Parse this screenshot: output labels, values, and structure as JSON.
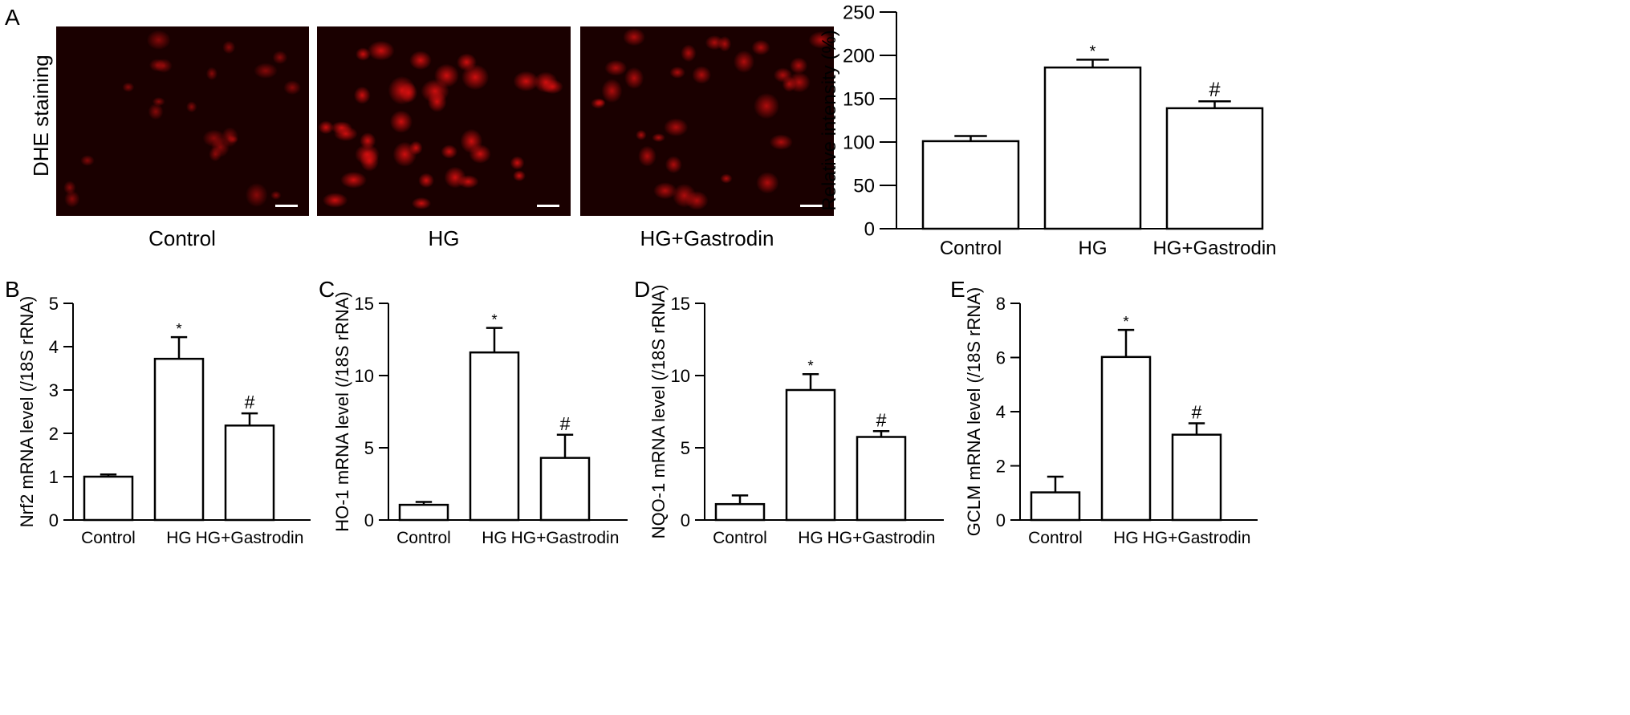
{
  "panel_a": {
    "letter": "A",
    "stain_label": "DHE staining",
    "images": [
      {
        "label": "Control",
        "intensity": "low"
      },
      {
        "label": "HG",
        "intensity": "high"
      },
      {
        "label": "HG+Gastrodin",
        "intensity": "medium"
      }
    ]
  },
  "colors": {
    "cell_signal": "#e01010",
    "background": "#1a0000",
    "bar_fill": "#ffffff",
    "bar_stroke": "#000000"
  },
  "chart_data": [
    {
      "panel": "A",
      "type": "bar",
      "categories": [
        "Control",
        "HG",
        "HG+Gastrodin"
      ],
      "values": [
        101,
        186,
        139
      ],
      "errors": [
        6,
        9,
        8
      ],
      "annotations": [
        "",
        "*",
        "#"
      ],
      "ylabel": "Relative intensity (%)",
      "ylim": [
        0,
        250
      ],
      "yticks": [
        0,
        50,
        100,
        150,
        200,
        250
      ]
    },
    {
      "panel": "B",
      "type": "bar",
      "categories": [
        "Control",
        "HG",
        "HG+Gastrodin"
      ],
      "values": [
        1.0,
        3.72,
        2.18
      ],
      "errors": [
        0.05,
        0.5,
        0.28
      ],
      "annotations": [
        "",
        "*",
        "#"
      ],
      "ylabel": "Nrf2 mRNA level (/18S rRNA)",
      "ylim": [
        0,
        5
      ],
      "yticks": [
        0,
        1,
        2,
        3,
        4,
        5
      ]
    },
    {
      "panel": "C",
      "type": "bar",
      "categories": [
        "Control",
        "HG",
        "HG+Gastrodin"
      ],
      "values": [
        1.05,
        11.6,
        4.3
      ],
      "errors": [
        0.2,
        1.7,
        1.6
      ],
      "annotations": [
        "",
        "*",
        "#"
      ],
      "ylabel": "HO-1 mRNA level (/18S rRNA)",
      "ylim": [
        0,
        15
      ],
      "yticks": [
        0,
        5,
        10,
        15
      ]
    },
    {
      "panel": "D",
      "type": "bar",
      "categories": [
        "Control",
        "HG",
        "HG+Gastrodin"
      ],
      "values": [
        1.1,
        9.0,
        5.75
      ],
      "errors": [
        0.6,
        1.1,
        0.4
      ],
      "annotations": [
        "",
        "*",
        "#"
      ],
      "ylabel": "NQO-1 mRNA level (/18S rRNA)",
      "ylim": [
        0,
        15
      ],
      "yticks": [
        0,
        5,
        10,
        15
      ]
    },
    {
      "panel": "E",
      "type": "bar",
      "categories": [
        "Control",
        "HG",
        "HG+Gastrodin"
      ],
      "values": [
        1.02,
        6.02,
        3.15
      ],
      "errors": [
        0.58,
        1.0,
        0.42
      ],
      "annotations": [
        "",
        "*",
        "#"
      ],
      "ylabel": "GCLM mRNA level (/18S rRNA)",
      "ylim": [
        0,
        8
      ],
      "yticks": [
        0,
        2,
        4,
        6,
        8
      ]
    }
  ]
}
